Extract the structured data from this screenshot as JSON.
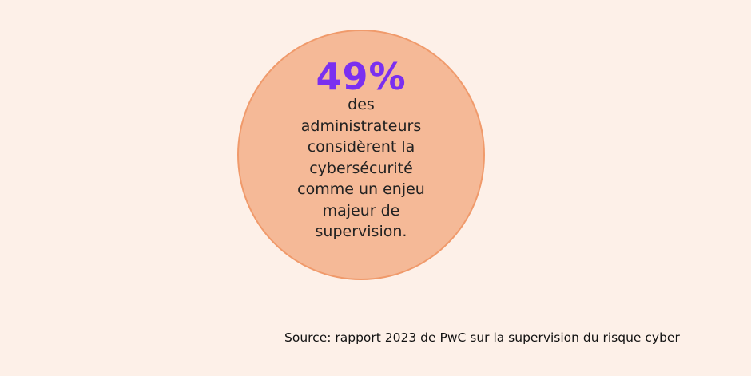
{
  "stat": {
    "value": "49%",
    "description_lines": [
      "des",
      "administrateurs",
      "considèrent la",
      "cybersécurité",
      "comme un enjeu",
      "majeur de",
      "supervision."
    ]
  },
  "source": "Source: rapport 2023 de PwC sur la supervision du risque cyber",
  "colors": {
    "background": "#fdf0e8",
    "circle_fill": "#f5b997",
    "circle_border": "#f09a6b",
    "stat_value": "#7a2ff0"
  }
}
